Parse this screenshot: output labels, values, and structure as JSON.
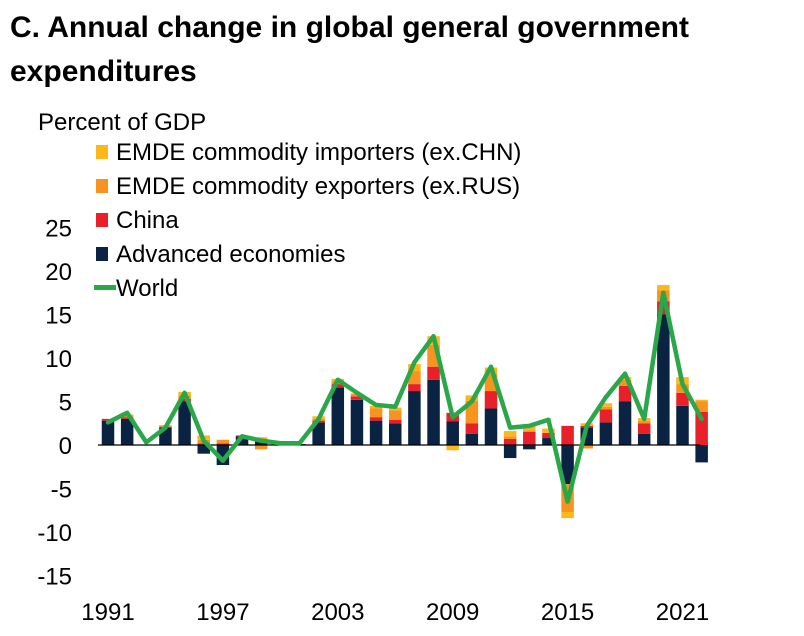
{
  "chart_data": {
    "type": "bar",
    "title": "C. Annual change in global general government expenditures",
    "ylabel": "Percent of GDP",
    "xlabel": "",
    "ylim": [
      -15,
      25
    ],
    "yticks": [
      25,
      20,
      15,
      10,
      5,
      0,
      -5,
      -10,
      -15
    ],
    "categories": [
      1991,
      1992,
      1993,
      1994,
      1995,
      1996,
      1997,
      1998,
      1999,
      2000,
      2001,
      2002,
      2003,
      2004,
      2005,
      2006,
      2007,
      2008,
      2009,
      2010,
      2011,
      2012,
      2013,
      2014,
      2015,
      2016,
      2017,
      2018,
      2019,
      2020,
      2021,
      2022
    ],
    "xtick_labels": [
      "1991",
      "1997",
      "2003",
      "2009",
      "2015",
      "2021"
    ],
    "legend_position": "top-left",
    "series": [
      {
        "name": "Advanced economies",
        "color": "#0b2343",
        "values": [
          2.8,
          3.0,
          0.0,
          2.0,
          5.0,
          -1.0,
          -2.3,
          1.0,
          0.5,
          0.1,
          0.1,
          2.6,
          6.6,
          5.2,
          2.8,
          2.5,
          6.2,
          7.5,
          2.7,
          1.3,
          4.2,
          -1.5,
          -0.5,
          0.8,
          -4.5,
          2.0,
          2.6,
          5.0,
          1.3,
          15.0,
          4.5,
          -2.0
        ]
      },
      {
        "name": "China",
        "color": "#e8202a",
        "values": [
          0.2,
          0.2,
          0.0,
          0.1,
          0.3,
          0.2,
          0.2,
          0.1,
          0.0,
          0.0,
          0.0,
          0.2,
          0.4,
          0.4,
          0.4,
          0.4,
          0.8,
          1.5,
          1.0,
          1.2,
          2.0,
          0.7,
          1.5,
          0.6,
          2.2,
          0.2,
          1.5,
          1.8,
          1.2,
          1.5,
          1.5,
          3.8
        ]
      },
      {
        "name": "EMDE commodity exporters (ex.RUS)",
        "color": "#f7931e",
        "values": [
          0.0,
          0.2,
          0.0,
          0.1,
          0.4,
          0.4,
          0.4,
          0.0,
          -0.5,
          0.0,
          0.0,
          0.2,
          0.3,
          0.3,
          1.0,
          1.1,
          1.5,
          2.5,
          0.0,
          2.6,
          2.0,
          0.3,
          0.2,
          0.0,
          -3.2,
          -0.4,
          0.3,
          0.7,
          0.3,
          1.3,
          1.0,
          1.2
        ]
      },
      {
        "name": "EMDE commodity importers (ex.CHN)",
        "color": "#fbb81a",
        "values": [
          0.0,
          0.1,
          0.0,
          0.1,
          0.4,
          0.5,
          0.0,
          0.0,
          0.4,
          0.0,
          0.0,
          0.3,
          0.3,
          0.0,
          0.3,
          0.3,
          0.8,
          1.0,
          -0.6,
          0.6,
          0.7,
          0.6,
          0.6,
          0.5,
          -0.7,
          0.3,
          0.4,
          0.3,
          0.3,
          0.6,
          0.8,
          0.2
        ]
      },
      {
        "name": "World",
        "color": "#2aa849",
        "type": "line",
        "values": [
          2.6,
          3.7,
          0.3,
          2.0,
          6.0,
          0.5,
          -1.8,
          1.0,
          0.5,
          0.2,
          0.2,
          3.0,
          7.5,
          6.0,
          4.6,
          4.4,
          9.5,
          12.5,
          3.2,
          5.0,
          9.0,
          2.0,
          2.2,
          2.9,
          -6.5,
          2.2,
          5.5,
          8.2,
          3.0,
          17.5,
          7.0,
          3.0
        ]
      }
    ],
    "legend_order": [
      "EMDE commodity importers (ex.CHN)",
      "EMDE commodity exporters (ex.RUS)",
      "China",
      "Advanced economies",
      "World"
    ]
  }
}
